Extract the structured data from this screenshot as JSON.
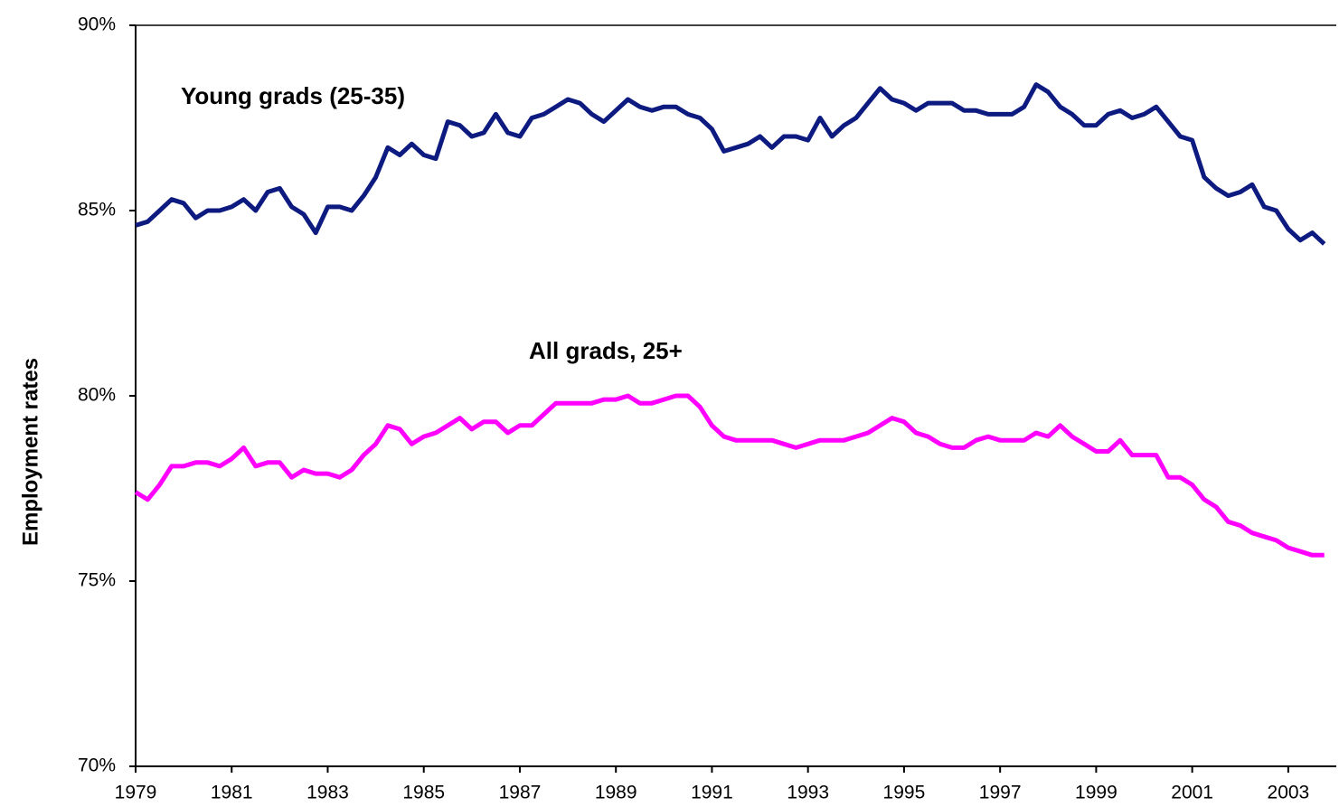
{
  "chart_data": {
    "type": "line",
    "y_label": "Employment rates",
    "x": [
      1979,
      1979.25,
      1979.5,
      1979.75,
      1980,
      1980.25,
      1980.5,
      1980.75,
      1981,
      1981.25,
      1981.5,
      1981.75,
      1982,
      1982.25,
      1982.5,
      1982.75,
      1983,
      1983.25,
      1983.5,
      1983.75,
      1984,
      1984.25,
      1984.5,
      1984.75,
      1985,
      1985.25,
      1985.5,
      1985.75,
      1986,
      1986.25,
      1986.5,
      1986.75,
      1987,
      1987.25,
      1987.5,
      1987.75,
      1988,
      1988.25,
      1988.5,
      1988.75,
      1989,
      1989.25,
      1989.5,
      1989.75,
      1990,
      1990.25,
      1990.5,
      1990.75,
      1991,
      1991.25,
      1991.5,
      1991.75,
      1992,
      1992.25,
      1992.5,
      1992.75,
      1993,
      1993.25,
      1993.5,
      1993.75,
      1994,
      1994.25,
      1994.5,
      1994.75,
      1995,
      1995.25,
      1995.5,
      1995.75,
      1996,
      1996.25,
      1996.5,
      1996.75,
      1997,
      1997.25,
      1997.5,
      1997.75,
      1998,
      1998.25,
      1998.5,
      1998.75,
      1999,
      1999.25,
      1999.5,
      1999.75,
      2000,
      2000.25,
      2000.5,
      2000.75,
      2001,
      2001.25,
      2001.5,
      2001.75,
      2002,
      2002.25,
      2002.5,
      2002.75,
      2003,
      2003.25,
      2003.5,
      2003.75
    ],
    "series": [
      {
        "name": "Young grads (25-35)",
        "color": "#0d1a80",
        "values": [
          84.6,
          84.7,
          85.0,
          85.3,
          85.2,
          84.8,
          85.0,
          85.0,
          85.1,
          85.3,
          85.0,
          85.5,
          85.6,
          85.1,
          84.9,
          84.4,
          85.1,
          85.1,
          85.0,
          85.4,
          85.9,
          86.7,
          86.5,
          86.8,
          86.5,
          86.4,
          87.4,
          87.3,
          87.0,
          87.1,
          87.6,
          87.1,
          87.0,
          87.5,
          87.6,
          87.8,
          88.0,
          87.9,
          87.6,
          87.4,
          87.7,
          88.0,
          87.8,
          87.7,
          87.8,
          87.8,
          87.6,
          87.5,
          87.2,
          86.6,
          86.7,
          86.8,
          87.0,
          86.7,
          87.0,
          87.0,
          86.9,
          87.5,
          87.0,
          87.3,
          87.5,
          87.9,
          88.3,
          88.0,
          87.9,
          87.7,
          87.9,
          87.9,
          87.9,
          87.7,
          87.7,
          87.6,
          87.6,
          87.6,
          87.8,
          88.4,
          88.2,
          87.8,
          87.6,
          87.3,
          87.3,
          87.6,
          87.7,
          87.5,
          87.6,
          87.8,
          87.4,
          87.0,
          86.9,
          85.9,
          85.6,
          85.4,
          85.5,
          85.7,
          85.1,
          85.0,
          84.5,
          84.2,
          84.4,
          84.1
        ]
      },
      {
        "name": "All grads, 25+",
        "color": "#ff00ff",
        "values": [
          77.4,
          77.2,
          77.6,
          78.1,
          78.1,
          78.2,
          78.2,
          78.1,
          78.3,
          78.6,
          78.1,
          78.2,
          78.2,
          77.8,
          78.0,
          77.9,
          77.9,
          77.8,
          78.0,
          78.4,
          78.7,
          79.2,
          79.1,
          78.7,
          78.9,
          79.0,
          79.2,
          79.4,
          79.1,
          79.3,
          79.3,
          79.0,
          79.2,
          79.2,
          79.5,
          79.8,
          79.8,
          79.8,
          79.8,
          79.9,
          79.9,
          80.0,
          79.8,
          79.8,
          79.9,
          80.0,
          80.0,
          79.7,
          79.2,
          78.9,
          78.8,
          78.8,
          78.8,
          78.8,
          78.7,
          78.6,
          78.7,
          78.8,
          78.8,
          78.8,
          78.9,
          79.0,
          79.2,
          79.4,
          79.3,
          79.0,
          78.9,
          78.7,
          78.6,
          78.6,
          78.8,
          78.9,
          78.8,
          78.8,
          78.8,
          79.0,
          78.9,
          79.2,
          78.9,
          78.7,
          78.5,
          78.5,
          78.8,
          78.4,
          78.4,
          78.4,
          77.8,
          77.8,
          77.6,
          77.2,
          77.0,
          76.6,
          76.5,
          76.3,
          76.2,
          76.1,
          75.9,
          75.8,
          75.7,
          75.7
        ]
      }
    ],
    "xlim": [
      1979,
      2004
    ],
    "xticks": [
      1979,
      1981,
      1983,
      1985,
      1987,
      1989,
      1991,
      1993,
      1995,
      1997,
      1999,
      2001,
      2003
    ],
    "ylim": [
      70,
      90
    ],
    "yticks": [
      {
        "value": 70,
        "label": "70%"
      },
      {
        "value": 75,
        "label": "75%"
      },
      {
        "value": 80,
        "label": "80%"
      },
      {
        "value": 85,
        "label": "85%"
      },
      {
        "value": 90,
        "label": "90%"
      }
    ]
  }
}
